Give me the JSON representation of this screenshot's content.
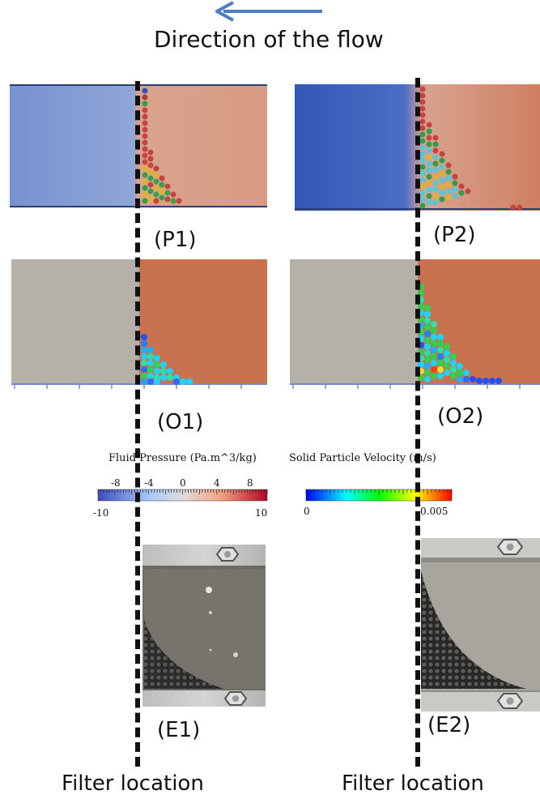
{
  "header": {
    "direction_label": "Direction of the flow",
    "arrow_color": "#4a7fc0"
  },
  "panels": {
    "p1_label": "(P1)",
    "p2_label": "(P2)",
    "o1_label": "(O1)",
    "o2_label": "(O2)",
    "e1_label": "(E1)",
    "e2_label": "(E2)"
  },
  "colorbars": {
    "pressure": {
      "title": "Fluid Pressure (Pa.m^3/kg)",
      "min_label": "-10",
      "max_label": "10",
      "ticks": [
        "-8",
        "-4",
        "0",
        "4",
        "8"
      ],
      "colors": [
        "#3b4cc0",
        "#aac7fd",
        "#dddddd",
        "#f4a582",
        "#b40426"
      ]
    },
    "velocity": {
      "title": "Solid Particle Velocity  (m/s)",
      "min_label": "0",
      "max_label": "0.005",
      "colors": [
        "#0000ff",
        "#00ffff",
        "#00ff00",
        "#ffff00",
        "#ff0000"
      ]
    }
  },
  "footer": {
    "filter_left": "Filter location",
    "filter_right": "Filter location"
  },
  "colors": {
    "low_pressure": "#6f8fcf",
    "high_pressure": "#d89a82",
    "dark_low_pressure": "#3b5db8",
    "gray_region": "#b6b1a8",
    "orange_region": "#c9724f",
    "dash_color": "#111111"
  }
}
